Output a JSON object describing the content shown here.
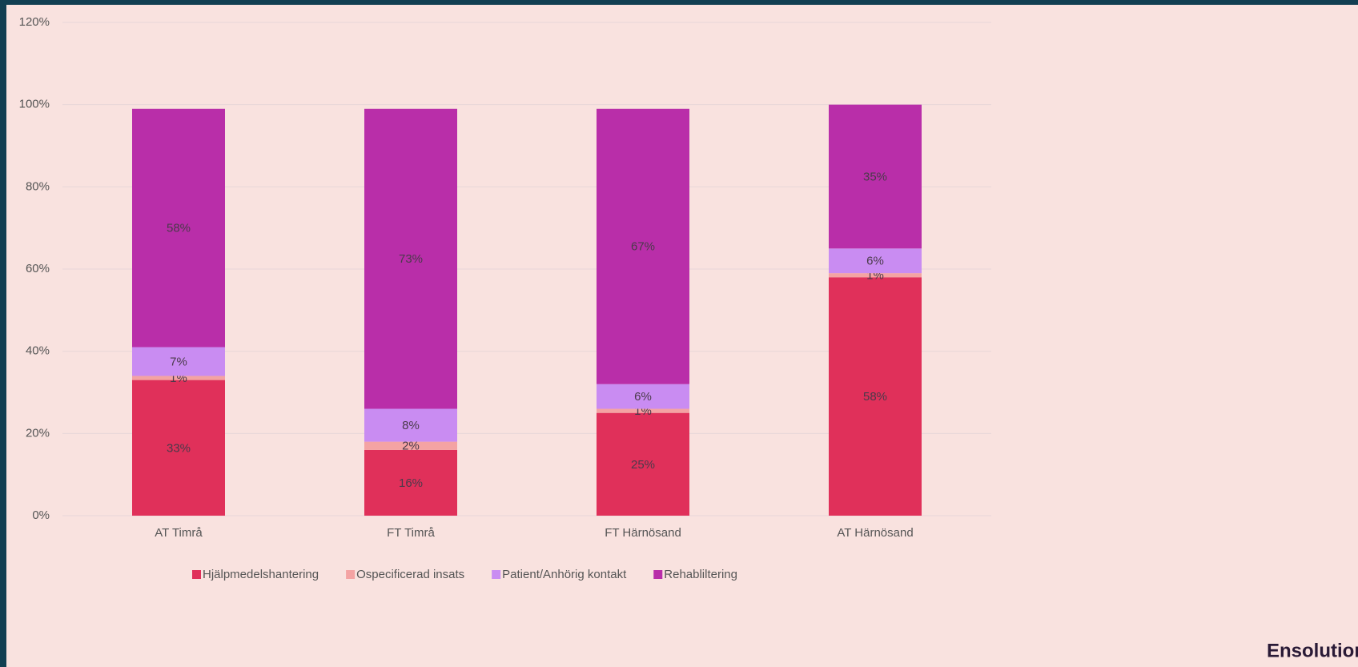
{
  "chart_data": {
    "type": "stacked_bar",
    "categories": [
      "AT Timrå",
      "FT Timrå",
      "FT Härnösand",
      "AT Härnösand"
    ],
    "series": [
      {
        "name": "Hjälpmedelshantering",
        "color": "#e0305a",
        "values": [
          33,
          16,
          25,
          58
        ],
        "value_labels": [
          "33%",
          "16%",
          "25%",
          "58%"
        ]
      },
      {
        "name": "Ospecificerad insats",
        "color": "#f4a3a3",
        "values": [
          1,
          2,
          1,
          1
        ],
        "value_labels": [
          "1%",
          "2%",
          "1%",
          "1%"
        ]
      },
      {
        "name": "Patient/Anhörig kontakt",
        "color": "#c98cf2",
        "values": [
          7,
          8,
          6,
          6
        ],
        "value_labels": [
          "7%",
          "8%",
          "6%",
          "6%"
        ]
      },
      {
        "name": "Rehabliltering",
        "color": "#b92ea9",
        "values": [
          58,
          73,
          67,
          35
        ],
        "value_labels": [
          "58%",
          "73%",
          "67%",
          "35%"
        ]
      }
    ],
    "ylim": [
      0,
      120
    ],
    "yticks": [
      {
        "value": 0,
        "label": "0%"
      },
      {
        "value": 20,
        "label": "20%"
      },
      {
        "value": 40,
        "label": "40%"
      },
      {
        "value": 60,
        "label": "60%"
      },
      {
        "value": 80,
        "label": "80%"
      },
      {
        "value": 100,
        "label": "100%"
      },
      {
        "value": 120,
        "label": "120%"
      }
    ],
    "grid": true,
    "legend": "bottom"
  },
  "brand": "Ensolution"
}
